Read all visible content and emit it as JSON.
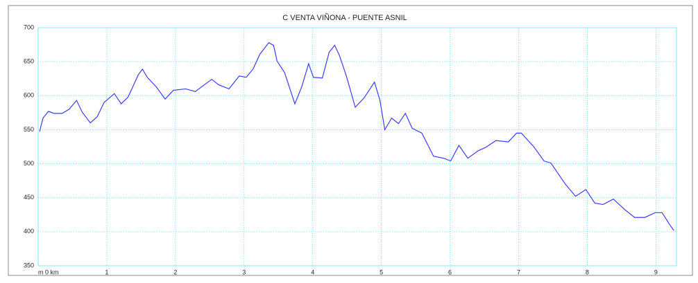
{
  "chart_data": {
    "type": "line",
    "title": "C VENTA VIÑONA - PUENTE ASNIL",
    "x": [
      0.02,
      0.07,
      0.15,
      0.23,
      0.35,
      0.45,
      0.56,
      0.64,
      0.76,
      0.86,
      0.96,
      1.11,
      1.21,
      1.31,
      1.46,
      1.52,
      1.59,
      1.72,
      1.85,
      1.97,
      2.15,
      2.29,
      2.42,
      2.53,
      2.63,
      2.78,
      2.93,
      3.03,
      3.13,
      3.23,
      3.36,
      3.43,
      3.48,
      3.59,
      3.74,
      3.84,
      3.94,
      4.01,
      4.14,
      4.24,
      4.32,
      4.39,
      4.49,
      4.62,
      4.75,
      4.9,
      4.98,
      5.05,
      5.15,
      5.25,
      5.35,
      5.45,
      5.59,
      5.76,
      5.91,
      6.01,
      6.13,
      6.26,
      6.41,
      6.52,
      6.67,
      6.85,
      6.97,
      7.04,
      7.22,
      7.37,
      7.47,
      7.68,
      7.83,
      7.98,
      8.11,
      8.23,
      8.38,
      8.54,
      8.69,
      8.84,
      8.99,
      9.09,
      9.19,
      9.26
    ],
    "series": [
      {
        "color": "#3a3aff",
        "values": [
          547,
          567,
          577,
          574,
          574,
          580,
          593,
          576,
          560,
          569,
          590,
          603,
          588,
          598,
          631,
          639,
          627,
          613,
          595,
          608,
          610,
          606,
          616,
          624,
          616,
          610,
          629,
          627,
          639,
          661,
          678,
          674,
          651,
          634,
          588,
          613,
          647,
          627,
          626,
          664,
          674,
          659,
          629,
          583,
          597,
          620,
          593,
          550,
          567,
          559,
          574,
          552,
          545,
          511,
          508,
          504,
          527,
          508,
          519,
          524,
          534,
          532,
          545,
          545,
          525,
          504,
          501,
          470,
          452,
          462,
          442,
          440,
          448,
          433,
          421,
          421,
          428,
          428,
          412,
          402
        ]
      }
    ],
    "xlim": [
      0,
      9.3
    ],
    "xticks": [
      {
        "value": 0,
        "label": "m 0 km"
      },
      1,
      2,
      3,
      4,
      5,
      6,
      7,
      8,
      9
    ],
    "ylim": [
      350,
      700
    ],
    "yticks": [
      350,
      400,
      450,
      500,
      550,
      600,
      650,
      700
    ],
    "grid": true,
    "grid_color": "#7fe6ff"
  }
}
